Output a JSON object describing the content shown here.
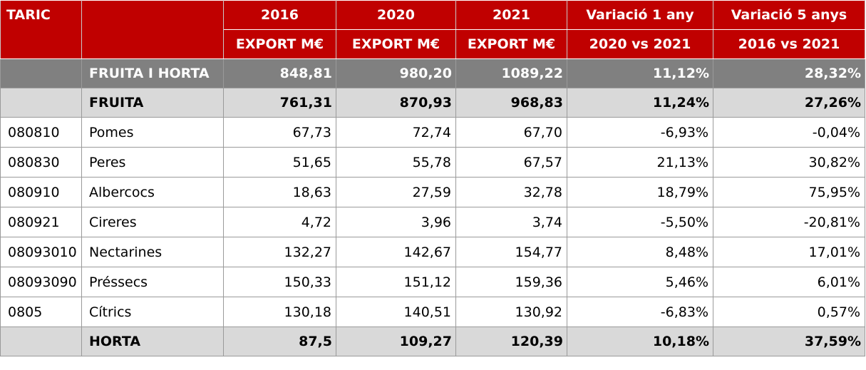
{
  "header": {
    "taric": "TARIC",
    "years": [
      "2016",
      "2020",
      "2021"
    ],
    "export_label": "EXPORT M€",
    "var1_title": "Variació 1 any",
    "var1_sub": "2020 vs 2021",
    "var5_title": "Variació 5 anys",
    "var5_sub": "2016 vs 2021"
  },
  "rows": [
    {
      "type": "group1",
      "code": "",
      "name": "FRUITA I HORTA",
      "v2016": "848,81",
      "v2020": "980,20",
      "v2021": "1089,22",
      "var1": "11,12%",
      "var5": "28,32%"
    },
    {
      "type": "group2",
      "code": "",
      "name": "FRUITA",
      "v2016": "761,31",
      "v2020": "870,93",
      "v2021": "968,83",
      "var1": "11,24%",
      "var5": "27,26%"
    },
    {
      "type": "row",
      "code": "080810",
      "name": "Pomes",
      "v2016": "67,73",
      "v2020": "72,74",
      "v2021": "67,70",
      "var1": "-6,93%",
      "var5": "-0,04%"
    },
    {
      "type": "row",
      "code": "080830",
      "name": "Peres",
      "v2016": "51,65",
      "v2020": "55,78",
      "v2021": "67,57",
      "var1": "21,13%",
      "var5": "30,82%"
    },
    {
      "type": "row",
      "code": "080910",
      "name": "Albercocs",
      "v2016": "18,63",
      "v2020": "27,59",
      "v2021": "32,78",
      "var1": "18,79%",
      "var5": "75,95%"
    },
    {
      "type": "row",
      "code": "080921",
      "name": "Cireres",
      "v2016": "4,72",
      "v2020": "3,96",
      "v2021": "3,74",
      "var1": "-5,50%",
      "var5": "-20,81%"
    },
    {
      "type": "row",
      "code": "08093010",
      "name": "Nectarines",
      "v2016": "132,27",
      "v2020": "142,67",
      "v2021": "154,77",
      "var1": "8,48%",
      "var5": "17,01%"
    },
    {
      "type": "row",
      "code": "08093090",
      "name": "Préssecs",
      "v2016": "150,33",
      "v2020": "151,12",
      "v2021": "159,36",
      "var1": "5,46%",
      "var5": "6,01%"
    },
    {
      "type": "row",
      "code": "0805",
      "name": "Cítrics",
      "v2016": "130,18",
      "v2020": "140,51",
      "v2021": "130,92",
      "var1": "-6,83%",
      "var5": "0,57%"
    },
    {
      "type": "group2",
      "code": "",
      "name": "HORTA",
      "v2016": "87,5",
      "v2020": "109,27",
      "v2021": "120,39",
      "var1": "10,18%",
      "var5": "37,59%"
    }
  ]
}
